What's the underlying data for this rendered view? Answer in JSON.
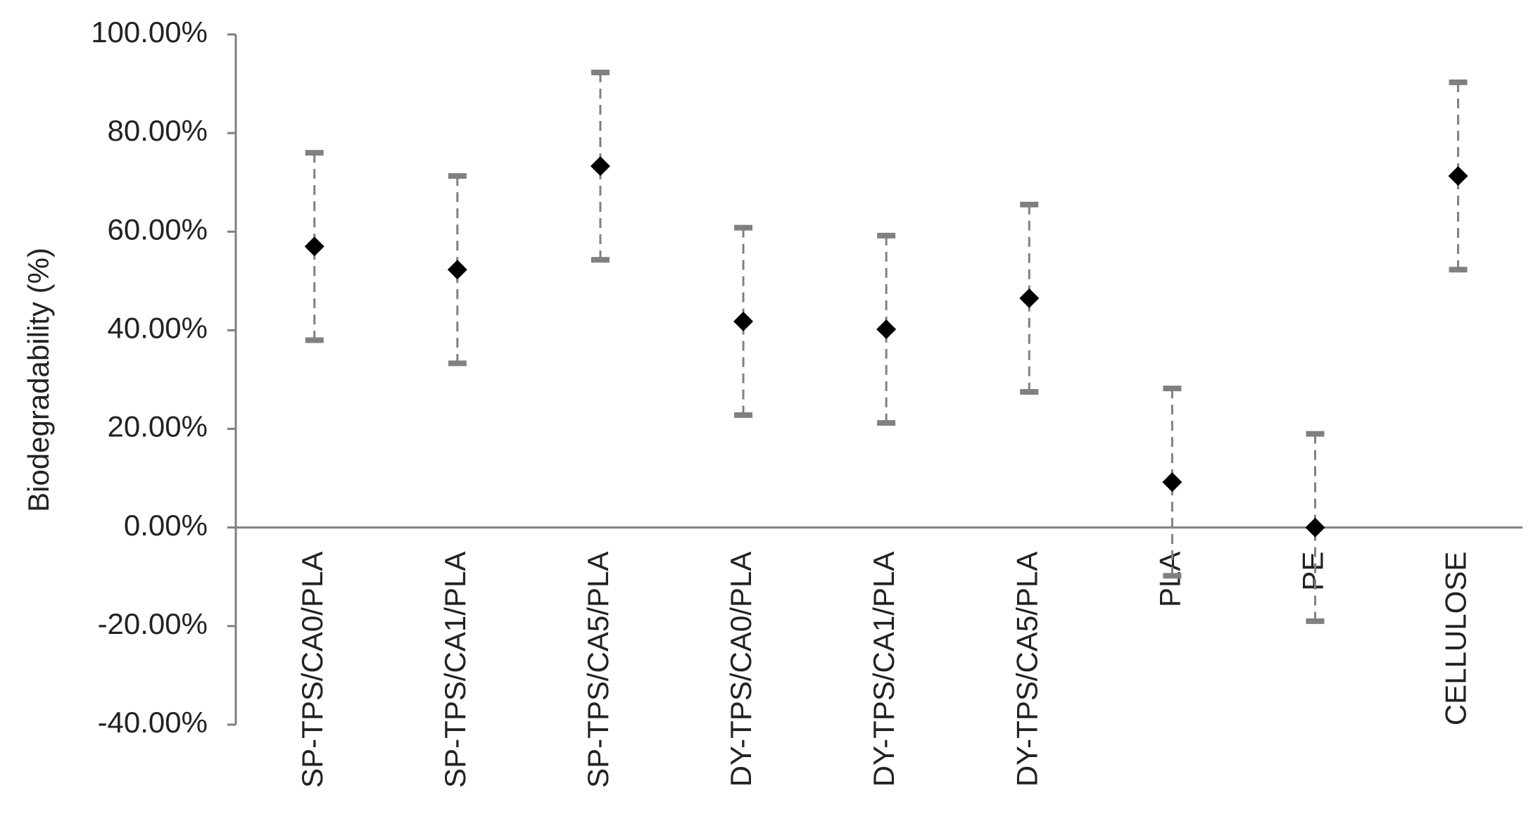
{
  "chart_data": {
    "type": "errorbar_scatter",
    "y_label": "Biodegradability (%)",
    "categories": [
      "SP-TPS/CA0/PLA",
      "SP-TPS/CA1/PLA",
      "SP-TPS/CA5/PLA",
      "DY-TPS/CA0/PLA",
      "DY-TPS/CA1/PLA",
      "DY-TPS/CA5/PLA",
      "PLA",
      "PE",
      "CELLULOSE"
    ],
    "values": [
      57,
      52.3,
      73.3,
      41.8,
      40.2,
      46.5,
      9.2,
      0,
      71.3
    ],
    "errors": [
      19,
      19,
      19,
      19,
      19,
      19,
      19,
      19,
      19
    ],
    "color": "#000000",
    "error_color": "#808080",
    "ylim": [
      -40,
      100
    ],
    "yticks": [
      {
        "value": -40,
        "label": "-40.00%"
      },
      {
        "value": -20,
        "label": "-20.00%"
      },
      {
        "value": 0,
        "label": "0.00%"
      },
      {
        "value": 20,
        "label": "20.00%"
      },
      {
        "value": 40,
        "label": "40.00%"
      },
      {
        "value": 60,
        "label": "60.00%"
      },
      {
        "value": 80,
        "label": "80.00%"
      },
      {
        "value": 100,
        "label": "100.00%"
      }
    ],
    "grid": false
  }
}
